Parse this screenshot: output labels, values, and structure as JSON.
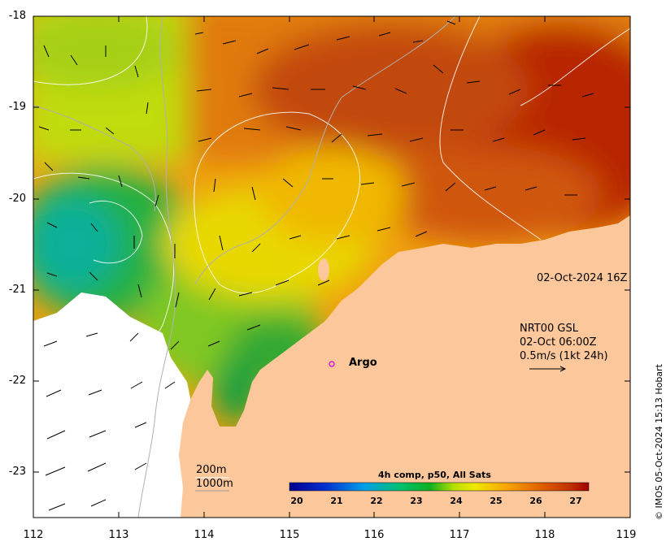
{
  "map": {
    "lat_range": [
      -23.5,
      -18
    ],
    "lon_range": [
      112,
      119
    ],
    "y_ticks": [
      "-18",
      "-19",
      "-20",
      "-21",
      "-22",
      "-23"
    ],
    "x_ticks": [
      "112",
      "113",
      "114",
      "115",
      "116",
      "117",
      "118",
      "119"
    ],
    "date_label": "02-Oct-2024 16Z",
    "current_info": {
      "line1": "NRT00 GSL",
      "line2": "02-Oct 06:00Z",
      "line3": "0.5m/s (1kt 24h)"
    },
    "argo_label": "Argo",
    "contour_labels": {
      "shallow": "200m",
      "deep": "1000m"
    },
    "colorbar": {
      "title": "4h comp, p50, All Sats",
      "ticks": [
        "20",
        "21",
        "22",
        "23",
        "24",
        "25",
        "26",
        "27"
      ],
      "range": [
        19.7,
        27.3
      ]
    },
    "credit": "© IMOS 05-Oct-2024 15:13 Hobart",
    "colors": {
      "land": "#fcc79a",
      "no_data": "#ffffff",
      "argo_marker": "#e01ad6"
    }
  }
}
